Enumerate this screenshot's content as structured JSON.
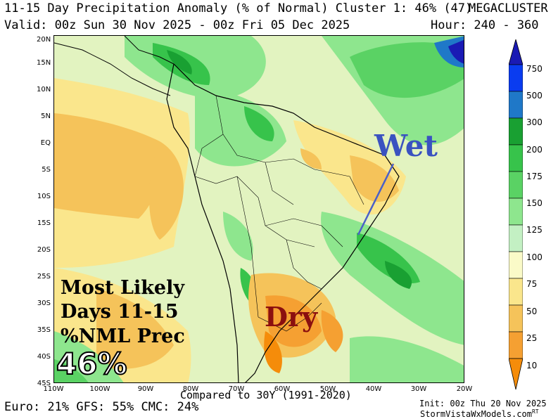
{
  "header": {
    "title_line": "11-15 Day Precipitation Anomaly (% of Normal) Cluster 1: 46% (47)",
    "brand": "MEGACLUSTER",
    "valid_line": "Valid: 00z Sun 30 Nov 2025 - 00z Fri 05 Dec 2025",
    "hour_line": "Hour: 240 - 360"
  },
  "map": {
    "lat_labels": [
      "20N",
      "15N",
      "10N",
      "5N",
      "EQ",
      "5S",
      "10S",
      "15S",
      "20S",
      "25S",
      "30S",
      "35S",
      "40S",
      "45S"
    ],
    "lon_labels": [
      "110W",
      "100W",
      "90W",
      "80W",
      "70W",
      "60W",
      "50W",
      "40W",
      "30W",
      "20W"
    ]
  },
  "annotations": {
    "wet_label": "Wet",
    "dry_label": "Dry",
    "summary_line1": "Most Likely",
    "summary_line2": "Days 11-15",
    "summary_line3": "%NML Prec",
    "cluster_pct": "46%"
  },
  "colorbar": {
    "levels": [
      "750",
      "500",
      "300",
      "200",
      "175",
      "150",
      "125",
      "100",
      "75",
      "50",
      "25",
      "10"
    ],
    "colors": [
      "#1a1ab4",
      "#0a3cf0",
      "#1f78c8",
      "#19a032",
      "#37c34b",
      "#5ad264",
      "#8ee68e",
      "#c3f0c3",
      "#fafac8",
      "#fae68c",
      "#f5c35a",
      "#f5a032",
      "#f58c0a"
    ]
  },
  "footer": {
    "compared": "Compared to 30Y (1991-2020)",
    "models": "Euro: 21% GFS: 55% CMC: 24%",
    "init": "Init: 00z Thu 20 Nov 2025",
    "site": "StormVistaWxModels.com",
    "site_sup": "RT"
  }
}
